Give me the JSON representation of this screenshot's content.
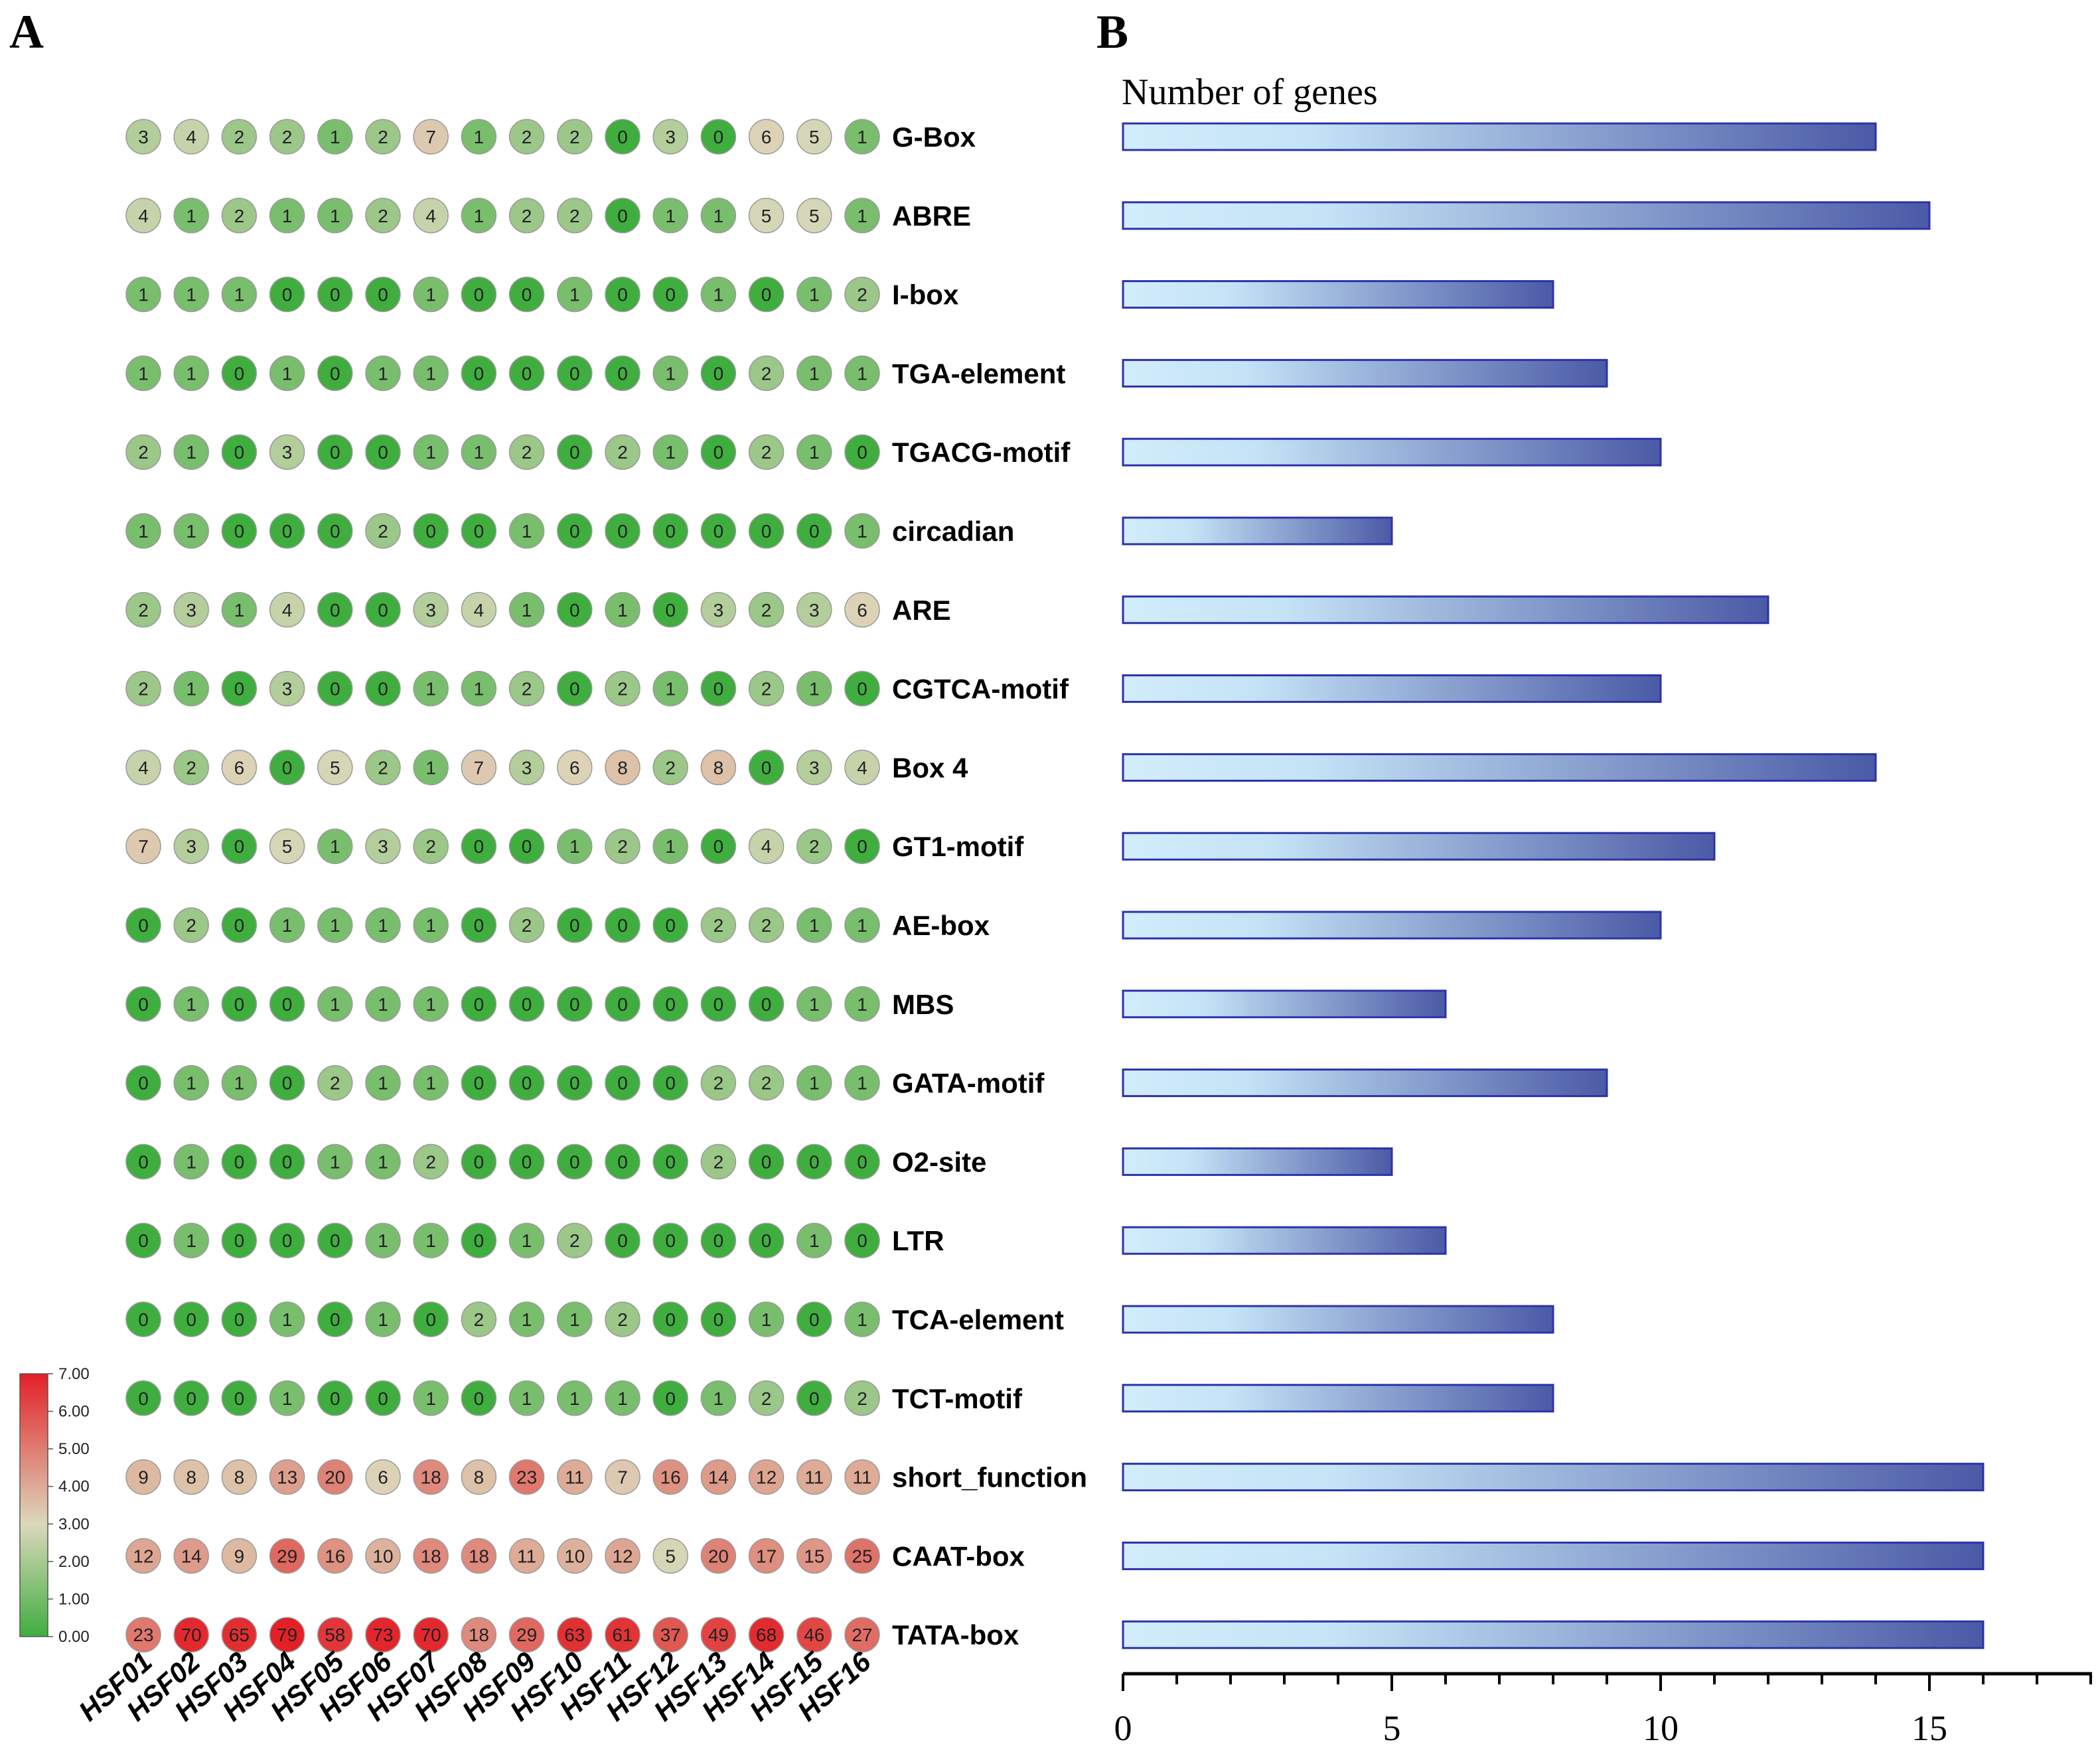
{
  "panel_labels": {
    "a": "A",
    "b": "B"
  },
  "colors": {
    "low": "#3fae3f",
    "mid": "#dcd8bb",
    "high": "#e32026",
    "bar_light": "#d2edfb",
    "bar_dark": "#4b5aa6",
    "bar_stroke": "#2c33a8"
  },
  "chart_data": [
    {
      "type": "heatmap",
      "title": "",
      "rows": [
        "G-Box",
        "ABRE",
        "I-box",
        "TGA-element",
        "TGACG-motif",
        "circadian",
        "ARE",
        "CGTCA-motif",
        "Box 4",
        "GT1-motif",
        "AE-box",
        "MBS",
        "GATA-motif",
        "O2-site",
        "LTR",
        "TCA-element",
        "TCT-motif",
        "short_function",
        "CAAT-box",
        "TATA-box"
      ],
      "columns": [
        "HSF01",
        "HSF02",
        "HSF03",
        "HSF04",
        "HSF05",
        "HSF06",
        "HSF07",
        "HSF08",
        "HSF09",
        "HSF10",
        "HSF11",
        "HSF12",
        "HSF13",
        "HSF14",
        "HSF15",
        "HSF16"
      ],
      "values": [
        [
          3,
          4,
          2,
          2,
          1,
          2,
          7,
          1,
          2,
          2,
          0,
          3,
          0,
          6,
          5,
          1
        ],
        [
          4,
          1,
          2,
          1,
          1,
          2,
          4,
          1,
          2,
          2,
          0,
          1,
          1,
          5,
          5,
          1
        ],
        [
          1,
          1,
          1,
          0,
          0,
          0,
          1,
          0,
          0,
          1,
          0,
          0,
          1,
          0,
          1,
          2
        ],
        [
          1,
          1,
          0,
          1,
          0,
          1,
          1,
          0,
          0,
          0,
          0,
          1,
          0,
          2,
          1,
          1
        ],
        [
          2,
          1,
          0,
          3,
          0,
          0,
          1,
          1,
          2,
          0,
          2,
          1,
          0,
          2,
          1,
          0
        ],
        [
          1,
          1,
          0,
          0,
          0,
          2,
          0,
          0,
          1,
          0,
          0,
          0,
          0,
          0,
          0,
          1
        ],
        [
          2,
          3,
          1,
          4,
          0,
          0,
          3,
          4,
          1,
          0,
          1,
          0,
          3,
          2,
          3,
          6
        ],
        [
          2,
          1,
          0,
          3,
          0,
          0,
          1,
          1,
          2,
          0,
          2,
          1,
          0,
          2,
          1,
          0
        ],
        [
          4,
          2,
          6,
          0,
          5,
          2,
          1,
          7,
          3,
          6,
          8,
          2,
          8,
          0,
          3,
          4
        ],
        [
          7,
          3,
          0,
          5,
          1,
          3,
          2,
          0,
          0,
          1,
          2,
          1,
          0,
          4,
          2,
          0
        ],
        [
          0,
          2,
          0,
          1,
          1,
          1,
          1,
          0,
          2,
          0,
          0,
          0,
          2,
          2,
          1,
          1
        ],
        [
          0,
          1,
          0,
          0,
          1,
          1,
          1,
          0,
          0,
          0,
          0,
          0,
          0,
          0,
          1,
          1
        ],
        [
          0,
          1,
          1,
          0,
          2,
          1,
          1,
          0,
          0,
          0,
          0,
          0,
          2,
          2,
          1,
          1
        ],
        [
          0,
          1,
          0,
          0,
          1,
          1,
          2,
          0,
          0,
          0,
          0,
          0,
          2,
          0,
          0,
          0
        ],
        [
          0,
          1,
          0,
          0,
          0,
          1,
          1,
          0,
          1,
          2,
          0,
          0,
          0,
          0,
          1,
          0
        ],
        [
          0,
          0,
          0,
          1,
          0,
          1,
          0,
          2,
          1,
          1,
          2,
          0,
          0,
          1,
          0,
          1
        ],
        [
          0,
          0,
          0,
          1,
          0,
          0,
          1,
          0,
          1,
          1,
          1,
          0,
          1,
          2,
          0,
          2
        ],
        [
          9,
          8,
          8,
          13,
          20,
          6,
          18,
          8,
          23,
          11,
          7,
          16,
          14,
          12,
          11,
          11
        ],
        [
          12,
          14,
          9,
          29,
          16,
          10,
          18,
          18,
          11,
          10,
          12,
          5,
          20,
          17,
          15,
          25
        ],
        [
          23,
          70,
          65,
          79,
          58,
          73,
          70,
          18,
          29,
          63,
          61,
          37,
          49,
          68,
          46,
          27
        ]
      ],
      "color_scale": {
        "ticks": [
          "0.00",
          "1.00",
          "2.00",
          "3.00",
          "4.00",
          "5.00",
          "6.00",
          "7.00"
        ],
        "min": 0,
        "max": 7
      }
    },
    {
      "type": "bar",
      "orientation": "horizontal",
      "title": "Number of genes",
      "categories": [
        "G-Box",
        "ABRE",
        "I-box",
        "TGA-element",
        "TGACG-motif",
        "circadian",
        "ARE",
        "CGTCA-motif",
        "Box 4",
        "GT1-motif",
        "AE-box",
        "MBS",
        "GATA-motif",
        "O2-site",
        "LTR",
        "TCA-element",
        "TCT-motif",
        "short_function",
        "CAAT-box",
        "TATA-box"
      ],
      "values": [
        14,
        15,
        8,
        9,
        10,
        5,
        12,
        10,
        14,
        11,
        10,
        6,
        9,
        5,
        6,
        8,
        8,
        16,
        16,
        16
      ],
      "xlim": [
        0,
        18
      ],
      "major_ticks": [
        "0",
        "5",
        "10",
        "15"
      ],
      "minor_tick_step": 1,
      "xlabel": "",
      "ylabel": ""
    }
  ]
}
